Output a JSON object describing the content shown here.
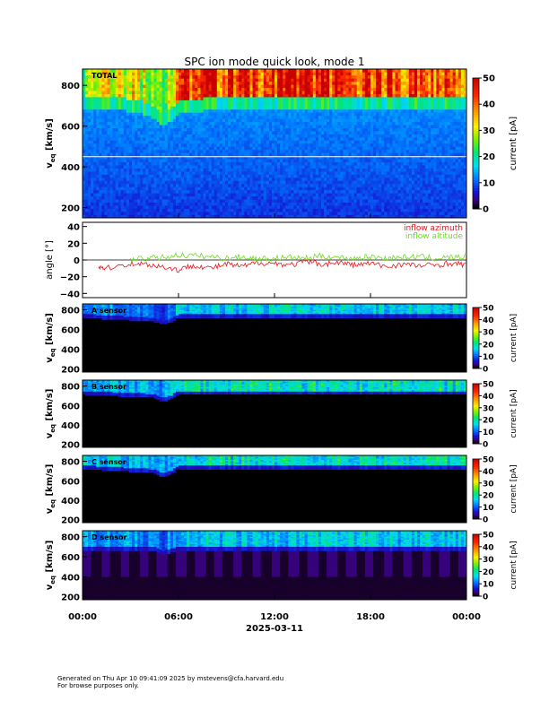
{
  "title": "SPC ion mode quick look, mode 1",
  "footer": {
    "line1": "Generated on Thu Apr 10 09:41:09 2025 by mstevens@cfa.harvard.edu",
    "line2": "For browse purposes only."
  },
  "xaxis": {
    "ticks": [
      "00:00",
      "06:00",
      "12:00",
      "18:00",
      "00:00"
    ],
    "date": "2025-03-11"
  },
  "colors": {
    "inflow_azimuth": "#e8141b",
    "inflow_altitude": "#6cdc1e",
    "background": "#000000"
  },
  "chart_data": [
    {
      "type": "heatmap",
      "panel": "TOTAL",
      "ylabel_main": "v",
      "ylabel_sub": "eq",
      "ylabel_unit": "[km/s]",
      "y_ticks": [
        "200",
        "400",
        "600",
        "800"
      ],
      "ylim": [
        150,
        880
      ],
      "x_hours_range": [
        0,
        24
      ],
      "colorbar": {
        "label": "current [pA]",
        "ticks": [
          "0",
          "10",
          "20",
          "30",
          "40",
          "50"
        ],
        "range": [
          0,
          50
        ]
      },
      "white_line_velocity": 450,
      "core_velocity_profile": {
        "hours": [
          0,
          2,
          3.5,
          4.5,
          5,
          5.5,
          6,
          8,
          12,
          18,
          24
        ],
        "lower_edge_kms": [
          740,
          740,
          730,
          700,
          660,
          680,
          720,
          740,
          740,
          740,
          740
        ],
        "peak_current_pA": [
          28,
          30,
          32,
          26,
          22,
          30,
          42,
          46,
          48,
          46,
          40
        ]
      }
    },
    {
      "type": "line",
      "panel": "angles",
      "ylabel": "angle [°]",
      "y_ticks": [
        "40",
        "20",
        "0",
        "−20",
        "−40"
      ],
      "ylim": [
        -45,
        45
      ],
      "series": [
        {
          "name": "inflow azimuth",
          "hours": [
            1.0,
            1.5,
            3.0,
            4.0,
            5.0,
            6.0,
            7.0,
            8.0,
            9.0,
            10.0,
            11.0,
            12.0,
            13.0,
            14.0,
            15.0,
            16.0,
            17.0,
            18.0,
            19.0,
            20.0,
            21.0,
            22.0,
            23.0,
            24.0
          ],
          "values": [
            -8,
            -10,
            -4,
            -5,
            -8,
            -12,
            -6,
            -10,
            -5,
            -8,
            -3,
            -4,
            -6,
            -2,
            -5,
            -3,
            -6,
            -4,
            -8,
            -5,
            -7,
            -6,
            -4,
            -6
          ]
        },
        {
          "name": "inflow altitude",
          "hours": [
            3.0,
            4.0,
            5.0,
            6.0,
            7.0,
            8.0,
            9.0,
            10.0,
            11.0,
            12.0,
            13.0,
            14.0,
            15.0,
            16.0,
            17.0,
            18.0,
            19.0,
            20.0,
            21.0,
            22.0,
            23.0,
            24.0
          ],
          "values": [
            0,
            2,
            3,
            6,
            5,
            4,
            2,
            4,
            1,
            2,
            3,
            2,
            5,
            3,
            2,
            4,
            2,
            3,
            4,
            2,
            3,
            4
          ]
        }
      ]
    },
    {
      "type": "heatmap",
      "panel": "A sensor",
      "label": "A sensor",
      "y_ticks": [
        "200",
        "400",
        "600",
        "800"
      ],
      "ylim": [
        170,
        860
      ],
      "colorbar": {
        "label": "current [pA]",
        "ticks": [
          "0",
          "10",
          "20",
          "30",
          "40",
          "50"
        ],
        "range": [
          0,
          50
        ]
      },
      "core_velocity_profile": {
        "hours": [
          0,
          4.5,
          5,
          5.5,
          6,
          24
        ],
        "lower_edge_kms": [
          760,
          720,
          690,
          710,
          760,
          760
        ],
        "peak_current_pA": [
          14,
          10,
          8,
          10,
          16,
          16
        ]
      }
    },
    {
      "type": "heatmap",
      "panel": "B sensor",
      "label": "B sensor",
      "y_ticks": [
        "200",
        "400",
        "600",
        "800"
      ],
      "ylim": [
        170,
        860
      ],
      "colorbar": {
        "label": "current [pA]",
        "ticks": [
          "0",
          "10",
          "20",
          "30",
          "40",
          "50"
        ],
        "range": [
          0,
          50
        ]
      },
      "core_velocity_profile": {
        "hours": [
          0,
          4.5,
          5,
          5.5,
          6,
          24
        ],
        "lower_edge_kms": [
          750,
          720,
          680,
          700,
          750,
          750
        ],
        "peak_current_pA": [
          16,
          14,
          12,
          14,
          18,
          18
        ]
      }
    },
    {
      "type": "heatmap",
      "panel": "C sensor",
      "label": "C sensor",
      "y_ticks": [
        "200",
        "400",
        "600",
        "800"
      ],
      "ylim": [
        170,
        860
      ],
      "colorbar": {
        "label": "current [pA]",
        "ticks": [
          "0",
          "10",
          "20",
          "30",
          "40",
          "50"
        ],
        "range": [
          0,
          50
        ]
      },
      "core_velocity_profile": {
        "hours": [
          0,
          4.5,
          5,
          5.5,
          6,
          24
        ],
        "lower_edge_kms": [
          760,
          720,
          680,
          700,
          760,
          760
        ],
        "peak_current_pA": [
          16,
          14,
          12,
          14,
          18,
          18
        ]
      }
    },
    {
      "type": "heatmap",
      "panel": "D sensor",
      "label": "D sensor",
      "y_ticks": [
        "200",
        "400",
        "600",
        "800"
      ],
      "ylim": [
        170,
        860
      ],
      "colorbar": {
        "label": "current [pA]",
        "ticks": [
          "0",
          "10",
          "20",
          "30",
          "40",
          "50"
        ],
        "range": [
          0,
          50
        ]
      },
      "core_velocity_profile": {
        "hours": [
          0,
          4.5,
          5,
          5.5,
          6,
          24
        ],
        "lower_edge_kms": [
          700,
          700,
          660,
          680,
          700,
          700
        ],
        "peak_current_pA": [
          14,
          12,
          10,
          12,
          16,
          16
        ]
      },
      "background_band_pA": 3
    }
  ]
}
